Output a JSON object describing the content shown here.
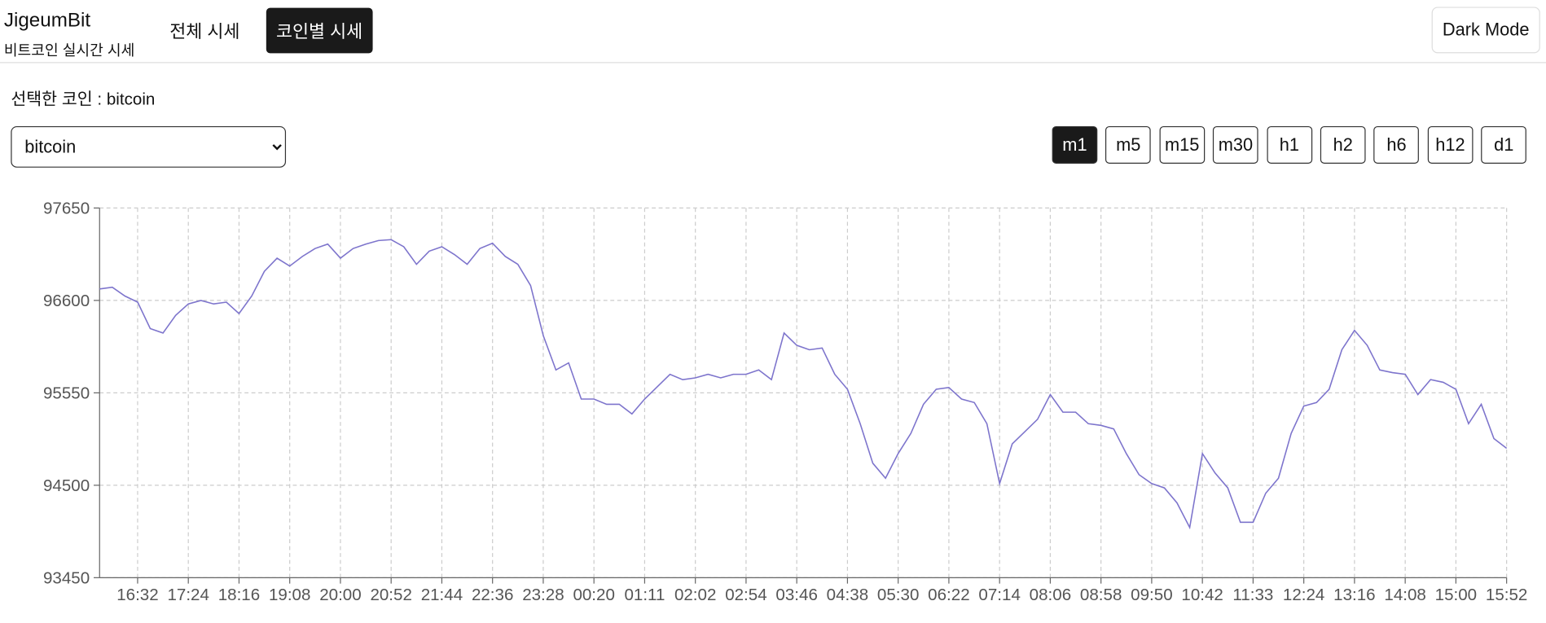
{
  "header": {
    "brand": "JigeumBit",
    "tagline": "비트코인 실시간 시세",
    "nav": [
      "전체 시세",
      "코인별 시세"
    ],
    "active_nav": 1,
    "dark_mode_button": "Dark Mode"
  },
  "selected_label": "선택한 코인 : bitcoin",
  "coin_select": {
    "options": [
      "bitcoin"
    ]
  },
  "intervals": {
    "options": [
      "m1",
      "m5",
      "m15",
      "m30",
      "h1",
      "h2",
      "h6",
      "h12",
      "d1"
    ],
    "active": 0
  },
  "chart_data": {
    "type": "line",
    "color": "#7d74cc",
    "grid": true,
    "ylim": [
      93450,
      97650
    ],
    "yticks": [
      93450,
      94500,
      95550,
      96600,
      97650
    ],
    "categories": [
      null,
      null,
      null,
      "16:32",
      null,
      null,
      null,
      "17:24",
      null,
      null,
      null,
      "18:16",
      null,
      null,
      null,
      "19:08",
      null,
      null,
      null,
      "20:00",
      null,
      null,
      null,
      "20:52",
      null,
      null,
      null,
      "21:44",
      null,
      null,
      null,
      "22:36",
      null,
      null,
      null,
      "23:28",
      null,
      null,
      null,
      "00:20",
      null,
      null,
      null,
      "01:11",
      null,
      null,
      null,
      "02:02",
      null,
      null,
      null,
      "02:54",
      null,
      null,
      null,
      "03:46",
      null,
      null,
      null,
      "04:38",
      null,
      null,
      null,
      "05:30",
      null,
      null,
      null,
      "06:22",
      null,
      null,
      null,
      "07:14",
      null,
      null,
      null,
      "08:06",
      null,
      null,
      null,
      "08:58",
      null,
      null,
      null,
      "09:50",
      null,
      null,
      null,
      "10:42",
      null,
      null,
      null,
      "11:33",
      null,
      null,
      null,
      "12:24",
      null,
      null,
      null,
      "13:16",
      null,
      null,
      null,
      "14:08",
      null,
      null,
      null,
      "15:00",
      null,
      null,
      null,
      "15:52"
    ],
    "values": [
      96730,
      96750,
      96650,
      96580,
      96280,
      96230,
      96430,
      96560,
      96600,
      96560,
      96580,
      96450,
      96650,
      96930,
      97080,
      96990,
      97100,
      97190,
      97240,
      97080,
      97190,
      97240,
      97280,
      97290,
      97210,
      97010,
      97160,
      97210,
      97120,
      97010,
      97190,
      97250,
      97100,
      97010,
      96770,
      96200,
      95810,
      95890,
      95480,
      95480,
      95420,
      95420,
      95310,
      95480,
      95620,
      95760,
      95700,
      95720,
      95760,
      95720,
      95760,
      95760,
      95810,
      95700,
      96230,
      96090,
      96040,
      96060,
      95760,
      95590,
      95200,
      94750,
      94580,
      94860,
      95090,
      95420,
      95590,
      95610,
      95480,
      95440,
      95200,
      94520,
      94970,
      95110,
      95250,
      95530,
      95330,
      95330,
      95200,
      95180,
      95140,
      94860,
      94620,
      94520,
      94470,
      94300,
      94020,
      94860,
      94640,
      94470,
      94080,
      94080,
      94410,
      94580,
      95090,
      95400,
      95440,
      95590,
      96040,
      96260,
      96090,
      95810,
      95780,
      95760,
      95530,
      95700,
      95670,
      95590,
      95200,
      95420,
      95030,
      94920
    ]
  }
}
